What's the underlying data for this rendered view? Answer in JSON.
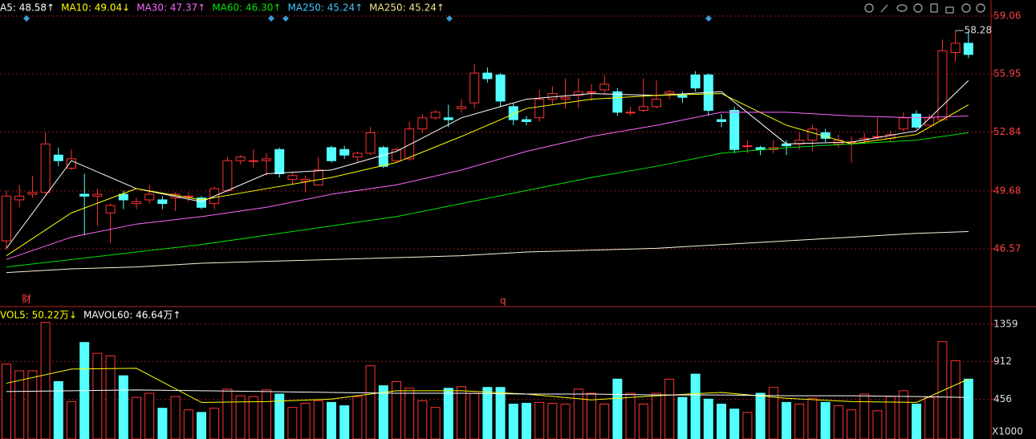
{
  "chart_data": {
    "type": "candlestick",
    "legend": [
      {
        "label": "A5: 48.58↑",
        "color": "#ffffff"
      },
      {
        "label": "MA10: 49.04↓",
        "color": "#ffff00"
      },
      {
        "label": "MA30: 47.37↑",
        "color": "#ff66ff"
      },
      {
        "label": "MA60: 46.30↑",
        "color": "#00e600"
      },
      {
        "label": "MA250: 45.24↑",
        "color": "#3fc8ff"
      },
      {
        "label": "MA250: 45.24↑",
        "color": "#f0e68c"
      }
    ],
    "up_color": "#ff3232",
    "down_color": "#54ffff",
    "open": [
      47.0,
      49.2,
      49.5,
      49.6,
      51.6,
      50.9,
      49.5,
      49.4,
      48.5,
      49.5,
      49.0,
      49.2,
      49.2,
      49.3,
      49.4,
      49.3,
      49.0,
      49.7,
      51.3,
      51.3,
      51.3,
      51.9,
      50.3,
      50.2,
      50.0,
      52.0,
      51.9,
      51.5,
      51.7,
      52.0,
      51.3,
      51.4,
      53.0,
      53.6,
      53.6,
      54.1,
      54.4,
      56.0,
      55.9,
      54.2,
      53.5,
      53.6,
      54.6,
      54.6,
      54.8,
      55.0,
      55.1,
      55.0,
      53.9,
      54.0,
      54.2,
      54.9,
      54.8,
      55.9,
      55.9,
      53.5,
      54.0,
      52.1,
      52.0,
      51.9,
      52.2,
      52.2,
      52.4,
      52.8,
      52.2,
      52.3,
      52.4,
      52.6,
      52.5,
      53.0,
      53.8,
      53.2,
      53.5,
      57.1,
      57.6
    ],
    "close": [
      49.4,
      49.4,
      49.6,
      52.2,
      51.3,
      51.4,
      49.4,
      49.5,
      48.9,
      49.2,
      49.1,
      49.5,
      49.0,
      49.5,
      49.4,
      48.8,
      49.8,
      51.3,
      51.5,
      51.3,
      51.4,
      50.6,
      50.5,
      50.3,
      50.8,
      51.3,
      51.6,
      51.7,
      52.8,
      51.0,
      51.9,
      53.0,
      53.6,
      53.9,
      53.5,
      54.2,
      56.0,
      55.7,
      54.5,
      53.5,
      53.4,
      54.6,
      54.9,
      54.7,
      55.0,
      55.0,
      55.4,
      53.9,
      53.9,
      54.2,
      54.6,
      55.0,
      54.7,
      55.2,
      54.0,
      53.4,
      51.9,
      52.1,
      51.9,
      52.0,
      52.1,
      52.4,
      53.0,
      52.5,
      52.4,
      52.3,
      52.5,
      52.6,
      52.7,
      53.6,
      53.1,
      53.6,
      57.2,
      57.6,
      57.0
    ],
    "high": [
      49.7,
      50.0,
      50.5,
      52.8,
      52.0,
      51.9,
      50.6,
      49.8,
      49.0,
      49.7,
      49.3,
      50.0,
      49.4,
      49.6,
      49.6,
      49.4,
      49.9,
      51.5,
      51.6,
      51.9,
      51.7,
      52.0,
      50.7,
      50.5,
      51.5,
      52.1,
      52.1,
      51.8,
      53.1,
      52.1,
      52.0,
      53.4,
      53.8,
      54.0,
      54.3,
      54.6,
      56.5,
      56.3,
      56.0,
      54.4,
      53.7,
      55.1,
      55.3,
      55.7,
      55.7,
      55.4,
      55.9,
      55.2,
      54.2,
      55.7,
      55.6,
      55.1,
      55.0,
      56.1,
      56.0,
      53.8,
      54.2,
      52.4,
      52.1,
      52.4,
      52.4,
      52.8,
      53.2,
      53.0,
      52.7,
      52.6,
      52.8,
      53.6,
      52.9,
      53.9,
      54.0,
      53.8,
      57.8,
      58.28,
      58.2
    ],
    "low": [
      46.5,
      48.8,
      49.3,
      49.5,
      51.0,
      50.8,
      47.3,
      47.8,
      46.9,
      48.7,
      48.7,
      49.0,
      48.7,
      48.6,
      49.1,
      48.7,
      48.7,
      49.6,
      51.1,
      50.9,
      50.5,
      50.4,
      50.0,
      49.6,
      50.0,
      51.2,
      51.4,
      51.2,
      51.6,
      50.9,
      51.2,
      51.3,
      52.8,
      53.5,
      53.1,
      53.9,
      54.1,
      55.5,
      54.2,
      53.2,
      53.2,
      53.4,
      54.3,
      54.1,
      54.1,
      54.5,
      54.9,
      53.7,
      53.7,
      53.9,
      54.1,
      54.6,
      54.4,
      55.0,
      53.7,
      53.1,
      51.7,
      51.7,
      51.6,
      51.7,
      51.6,
      51.9,
      51.8,
      52.3,
      52.0,
      51.2,
      52.2,
      52.4,
      52.3,
      52.9,
      53.0,
      53.2,
      53.4,
      56.6,
      56.8
    ],
    "high_label": "58.28",
    "ylim": [
      43.56,
      59.92
    ],
    "yticks": [
      59.06,
      55.95,
      52.84,
      49.68,
      46.57
    ],
    "grid": true,
    "lines": [
      {
        "color": "#ffffff",
        "x": [
          0,
          5,
          10,
          15,
          20,
          25,
          30,
          35,
          40,
          45,
          50,
          55,
          60,
          65,
          70,
          74
        ],
        "values": [
          46.6,
          51.3,
          49.8,
          49.1,
          50.6,
          50.8,
          51.8,
          53.6,
          54.6,
          54.9,
          54.8,
          55.0,
          52.2,
          52.3,
          52.9,
          55.6
        ]
      },
      {
        "color": "#ffff00",
        "x": [
          0,
          5,
          10,
          15,
          20,
          25,
          30,
          35,
          40,
          45,
          50,
          55,
          60,
          65,
          70,
          74
        ],
        "values": [
          46.2,
          48.5,
          49.8,
          49.2,
          49.8,
          50.4,
          51.2,
          52.6,
          54.1,
          54.6,
          54.8,
          54.9,
          53.2,
          52.2,
          52.7,
          54.3
        ]
      },
      {
        "color": "#ff66ff",
        "x": [
          0,
          5,
          10,
          15,
          20,
          25,
          30,
          35,
          40,
          45,
          50,
          55,
          60,
          65,
          70,
          74
        ],
        "values": [
          46.0,
          47.2,
          47.9,
          48.3,
          48.8,
          49.5,
          50.0,
          50.8,
          51.8,
          52.6,
          53.2,
          53.9,
          53.9,
          53.7,
          53.6,
          53.7
        ]
      },
      {
        "color": "#00e600",
        "x": [
          0,
          5,
          10,
          15,
          20,
          25,
          30,
          35,
          40,
          45,
          50,
          55,
          60,
          65,
          70,
          74
        ],
        "values": [
          45.6,
          46.0,
          46.4,
          46.8,
          47.3,
          47.8,
          48.3,
          49.0,
          49.7,
          50.4,
          51.0,
          51.7,
          52.0,
          52.2,
          52.4,
          52.8
        ]
      },
      {
        "color": "#f5f5dc",
        "x": [
          0,
          5,
          10,
          15,
          20,
          25,
          30,
          35,
          40,
          45,
          50,
          55,
          60,
          65,
          70,
          74
        ],
        "values": [
          45.3,
          45.5,
          45.6,
          45.8,
          45.9,
          46.0,
          46.1,
          46.2,
          46.4,
          46.5,
          46.6,
          46.8,
          47.0,
          47.2,
          47.4,
          47.5
        ]
      }
    ],
    "markers": [
      "财",
      "q"
    ],
    "volume": {
      "legend": [
        {
          "label": "VOL5: 50.22万↓",
          "color": "#ffff00"
        },
        {
          "label": "MAVOL60: 46.64万↑",
          "color": "#ffffff"
        }
      ],
      "values": [
        880,
        800,
        800,
        1380,
        670,
        430,
        1140,
        1010,
        980,
        740,
        480,
        530,
        350,
        490,
        330,
        300,
        350,
        580,
        500,
        490,
        570,
        520,
        360,
        410,
        440,
        420,
        380,
        490,
        860,
        620,
        670,
        590,
        440,
        360,
        590,
        610,
        530,
        600,
        600,
        400,
        410,
        420,
        410,
        400,
        580,
        530,
        400,
        700,
        530,
        400,
        530,
        700,
        480,
        760,
        460,
        400,
        340,
        300,
        530,
        600,
        420,
        400,
        470,
        420,
        380,
        330,
        520,
        320,
        490,
        560,
        400,
        480,
        1150,
        920,
        700
      ],
      "ylim": [
        0,
        1513
      ],
      "yticks": [
        1359,
        912,
        456
      ],
      "unit": "X1000",
      "lines": [
        {
          "color": "#ffff00",
          "x": [
            0,
            5,
            10,
            15,
            20,
            25,
            30,
            35,
            40,
            45,
            50,
            55,
            60,
            65,
            70,
            74
          ],
          "values": [
            650,
            820,
            830,
            420,
            430,
            460,
            560,
            560,
            520,
            450,
            500,
            540,
            470,
            430,
            420,
            700
          ]
        },
        {
          "color": "#ffffff",
          "x": [
            0,
            5,
            10,
            15,
            20,
            25,
            30,
            35,
            40,
            45,
            50,
            55,
            60,
            65,
            70,
            74
          ],
          "values": [
            550,
            560,
            570,
            560,
            550,
            540,
            530,
            530,
            520,
            520,
            510,
            510,
            500,
            500,
            490,
            480
          ]
        }
      ]
    }
  }
}
